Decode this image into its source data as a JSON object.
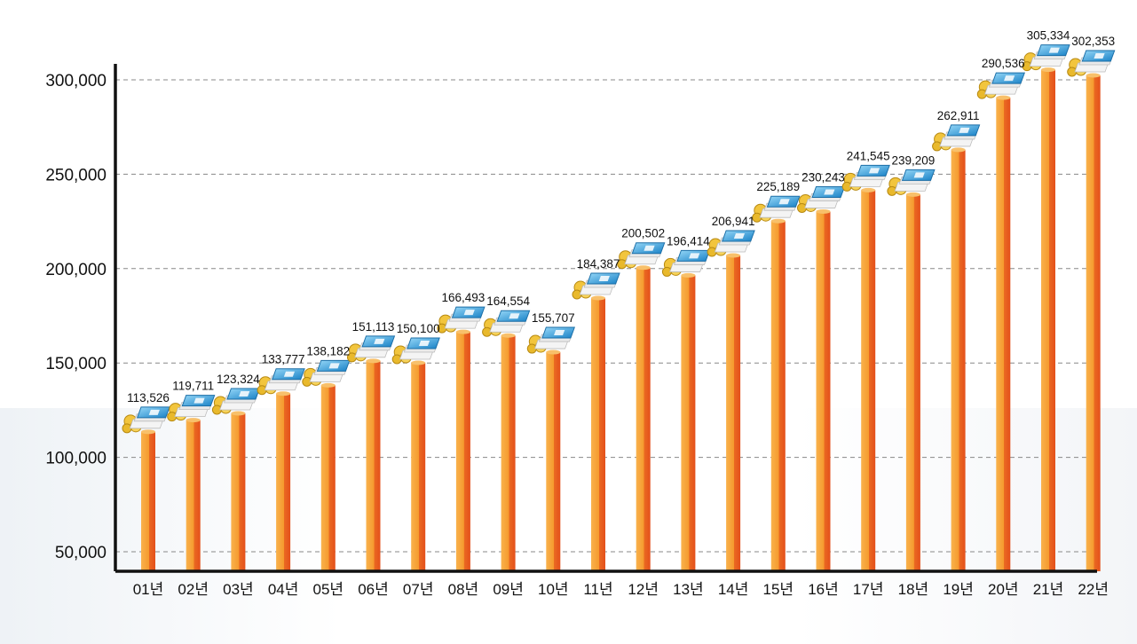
{
  "chart_data": {
    "type": "bar",
    "title": "",
    "xlabel": "",
    "ylabel": "",
    "categories": [
      "01년",
      "02년",
      "03년",
      "04년",
      "05년",
      "06년",
      "07년",
      "08년",
      "09년",
      "10년",
      "11년",
      "12년",
      "13년",
      "14년",
      "15년",
      "16년",
      "17년",
      "18년",
      "19년",
      "20년",
      "21년",
      "22년"
    ],
    "values": [
      113526,
      119711,
      123324,
      133777,
      138182,
      151113,
      150100,
      166493,
      164554,
      155707,
      184387,
      200502,
      196414,
      206941,
      225189,
      230243,
      241545,
      239209,
      262911,
      290536,
      305334,
      302353
    ],
    "data_labels": [
      "113,526",
      "119,711",
      "123,324",
      "133,777",
      "138,182",
      "151,113",
      "150,100",
      "166,493",
      "164,554",
      "155,707",
      "184,387",
      "200,502",
      "196,414",
      "206,941",
      "225,189",
      "230,243",
      "241,545",
      "239,209",
      "262,911",
      "290,536",
      "305,334",
      "302,353"
    ],
    "y_ticks": [
      50000,
      100000,
      150000,
      200000,
      250000,
      300000
    ],
    "y_tick_labels": [
      "50,000",
      "100,000",
      "150,000",
      "200,000",
      "250,000",
      "300,000"
    ],
    "ylim": [
      45000,
      308000
    ],
    "grid": true,
    "colors": {
      "bar_light": "#f7a43a",
      "bar_dark": "#e8531f",
      "axis": "#111111",
      "grid": "#888888"
    },
    "marker_icon": "money-stack-icon"
  }
}
